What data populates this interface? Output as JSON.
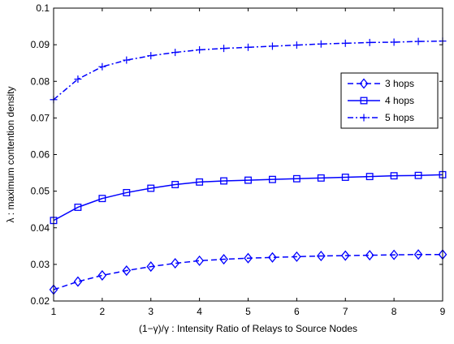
{
  "chart_data": {
    "type": "line",
    "title": "",
    "xlabel": "(1−γ)/γ : Intensity Ratio of Relays to Source Nodes",
    "ylabel": "λ : maximum contention density",
    "xlim": [
      1,
      9
    ],
    "ylim": [
      0.02,
      0.1
    ],
    "x_ticks": [
      "1",
      "2",
      "3",
      "4",
      "5",
      "6",
      "7",
      "8",
      "9"
    ],
    "y_ticks": [
      "0.02",
      "0.03",
      "0.04",
      "0.05",
      "0.06",
      "0.07",
      "0.08",
      "0.09",
      "0.1"
    ],
    "grid": false,
    "legend_position": "upper-right",
    "line_color": "#0000ff",
    "x": [
      1,
      1.5,
      2,
      2.5,
      3,
      3.5,
      4,
      4.5,
      5,
      5.5,
      6,
      6.5,
      7,
      7.5,
      8,
      8.5,
      9
    ],
    "series": [
      {
        "name": "3 hops",
        "marker": "diamond",
        "line_style": "dashed",
        "values": [
          0.0231,
          0.0253,
          0.027,
          0.0283,
          0.0294,
          0.0303,
          0.031,
          0.0314,
          0.0317,
          0.0319,
          0.0321,
          0.0323,
          0.0324,
          0.0325,
          0.0326,
          0.0327,
          0.0327
        ]
      },
      {
        "name": "4 hops",
        "marker": "square",
        "line_style": "solid",
        "values": [
          0.042,
          0.0456,
          0.048,
          0.0496,
          0.0508,
          0.0518,
          0.0525,
          0.0528,
          0.053,
          0.0532,
          0.0534,
          0.0536,
          0.0538,
          0.054,
          0.0542,
          0.0543,
          0.0545
        ]
      },
      {
        "name": "5 hops",
        "marker": "plus",
        "line_style": "dashdot",
        "values": [
          0.075,
          0.0806,
          0.084,
          0.0858,
          0.087,
          0.0879,
          0.0886,
          0.089,
          0.0893,
          0.0896,
          0.0899,
          0.0902,
          0.0904,
          0.0906,
          0.0907,
          0.0909,
          0.091
        ]
      }
    ]
  }
}
